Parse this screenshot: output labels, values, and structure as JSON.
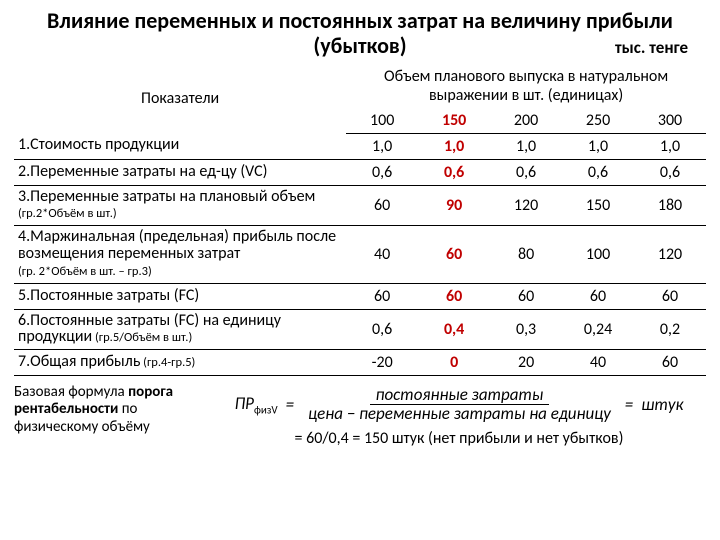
{
  "title": "Влияние переменных и постоянных затрат на величину прибыли (убытков)",
  "unit": "тыс. тенге",
  "headers": {
    "left": "Показатели",
    "top": "Объем планового выпуска в натуральном выражении в шт. (единицах)",
    "volumes": [
      "100",
      "150",
      "200",
      "250",
      "300"
    ]
  },
  "rows": [
    {
      "label": "1.Стоимость продукции",
      "note": "",
      "vals": [
        "1,0",
        "1,0",
        "1,0",
        "1,0",
        "1,0"
      ],
      "hlcol": 1
    },
    {
      "label": "2.Переменные затраты на ед-цу (VC)",
      "note": "",
      "vals": [
        "0,6",
        "0,6",
        "0,6",
        "0,6",
        "0,6"
      ],
      "hlcol": 1
    },
    {
      "label": "3.Переменные затраты на плановый объем",
      "note": " (гр.2*Объём в шт.)",
      "vals": [
        "60",
        "90",
        "120",
        "150",
        "180"
      ],
      "hlcol": 1
    },
    {
      "label": "4.Маржинальная (предельная) прибыль после возмещения переменных затрат",
      "note": "(гр. 2*Объём в шт. – гр.3)",
      "vals": [
        "40",
        "60",
        "80",
        "100",
        "120"
      ],
      "hlcol": 1,
      "notebreak": true
    },
    {
      "label": "5.Постоянные затраты (FC)",
      "note": "",
      "vals": [
        "60",
        "60",
        "60",
        "60",
        "60"
      ],
      "hlcol": 1
    },
    {
      "label": "6.Постоянные затраты (FC) на единицу продукции",
      "note": " (гр.5/Объём в шт.)",
      "vals": [
        "0,6",
        "0,4",
        "0,3",
        "0,24",
        "0,2"
      ],
      "hlcol": 1
    },
    {
      "label": "7.Общая прибыль",
      "note": " (гр.4-гр.5)",
      "vals": [
        "-20",
        "0",
        "20",
        "40",
        "60"
      ],
      "hlcol": 1
    }
  ],
  "footer_left": "Базовая формула <b>порога рентабельности</b> по физическому объёму",
  "formula": {
    "lhs": "ПР",
    "lhs_sub": "физV",
    "num": "постоянные затраты",
    "den": "цена − переменные затраты на единицу",
    "rhs": "штук"
  },
  "result": "= 60/0,4 = 150 штук (нет прибыли и нет убытков)"
}
